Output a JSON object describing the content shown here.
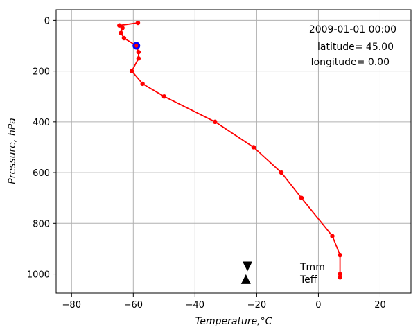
{
  "chart_data": {
    "type": "line",
    "xlabel": "Temperature,°C",
    "ylabel": "Pressure, hPa",
    "xlim": [
      -85,
      30
    ],
    "ylim": [
      1075,
      -42
    ],
    "x_ticks": [
      -80,
      -60,
      -40,
      -20,
      0,
      20
    ],
    "x_tick_labels": [
      "−80",
      "−60",
      "−40",
      "−20",
      "0",
      "20"
    ],
    "y_ticks": [
      0,
      200,
      400,
      600,
      800,
      1000
    ],
    "y_tick_labels": [
      "0",
      "200",
      "400",
      "600",
      "800",
      "1000"
    ],
    "grid": true,
    "series": [
      {
        "color": "#ff0000",
        "marker": "circle",
        "x": [
          -58.5,
          -64.5,
          -63.5,
          -64,
          -63,
          -59,
          -58.3,
          -58.3,
          -60.5,
          -57,
          -50,
          -33.5,
          -21,
          -12,
          -5.5,
          4.5,
          7,
          7,
          7
        ],
        "y": [
          10,
          20,
          30,
          50,
          70,
          100,
          125,
          150,
          200,
          250,
          300,
          400,
          500,
          600,
          700,
          850,
          925,
          1000,
          1013
        ]
      }
    ],
    "highlight_point": {
      "x": -59,
      "y": 100,
      "color": "#0000ff"
    },
    "annotations": {
      "datetime": "2009-01-01 00:00",
      "latitude": "latitude= 45.00",
      "longitude": "longitude=  0.00"
    },
    "markers": [
      {
        "label": "Tmm",
        "symbol": "triangle-down",
        "x": -23,
        "y": 970,
        "color": "#000000"
      },
      {
        "label": "Teff",
        "symbol": "triangle-up",
        "x": -23.5,
        "y": 1020,
        "color": "#000000"
      }
    ]
  }
}
